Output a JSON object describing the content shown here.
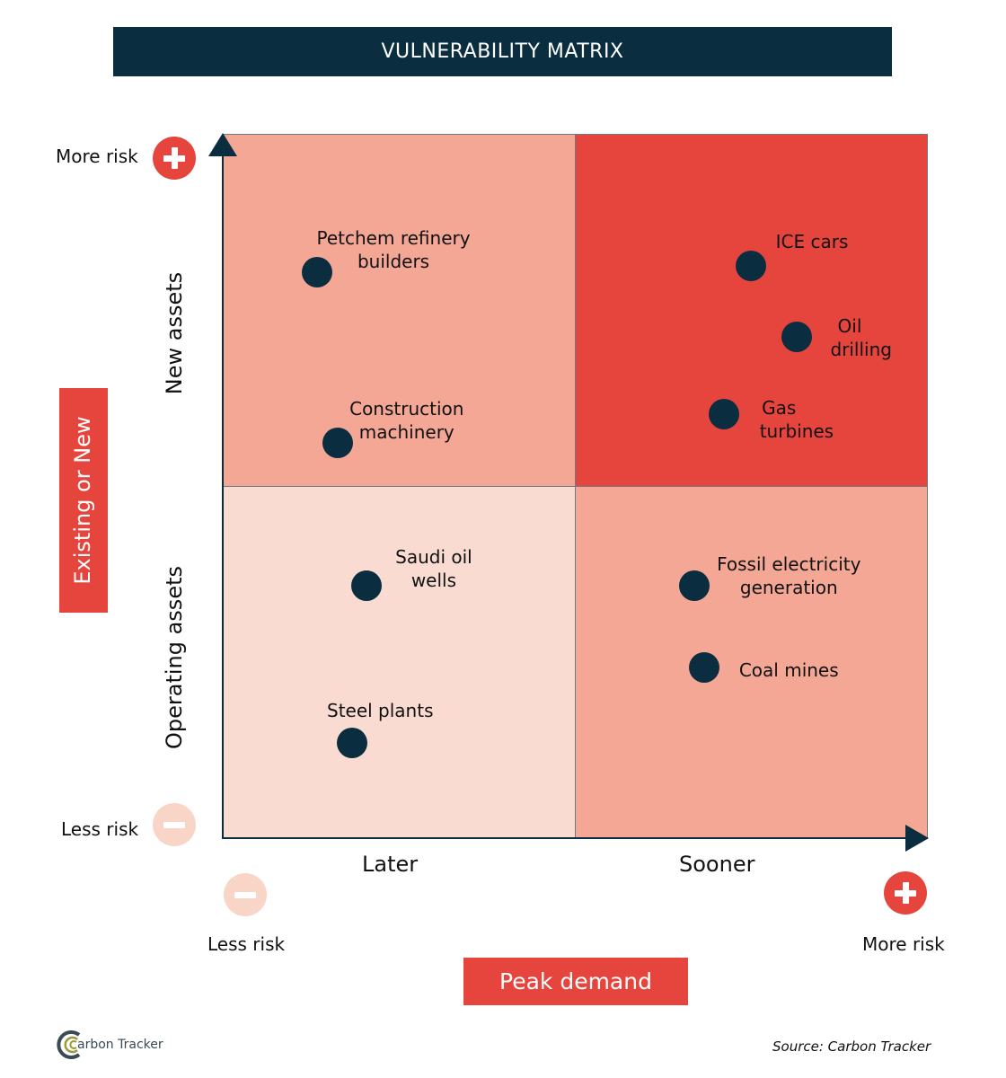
{
  "title": "VULNERABILITY MATRIX",
  "y_axis": {
    "title": "Existing or New",
    "top_label": "New assets",
    "bottom_label": "Operating assets",
    "more_risk": "More risk",
    "less_risk": "Less risk"
  },
  "x_axis": {
    "title": "Peak demand",
    "left_label": "Later",
    "right_label": "Sooner",
    "more_risk": "More risk",
    "less_risk": "Less risk"
  },
  "colors": {
    "dark": "#0a2d40",
    "high": "#e6453d",
    "mid": "#f3a794",
    "low": "#f9dbd1"
  },
  "chart_data": {
    "type": "scatter",
    "xlabel": "Peak demand",
    "ylabel": "Existing or New",
    "xlim": [
      0,
      10
    ],
    "ylim": [
      0,
      10
    ],
    "points": [
      {
        "label": "Petchem refinery builders",
        "x": 1.34,
        "y": 8.04
      },
      {
        "label": "Construction machinery",
        "x": 1.63,
        "y": 5.61
      },
      {
        "label": "Saudi oil wells",
        "x": 2.04,
        "y": 3.58
      },
      {
        "label": "Steel plants",
        "x": 1.84,
        "y": 1.35
      },
      {
        "label": "ICE cars",
        "x": 7.5,
        "y": 8.13
      },
      {
        "label": "Oil drilling",
        "x": 8.15,
        "y": 7.12
      },
      {
        "label": "Gas turbines",
        "x": 7.12,
        "y": 6.02
      },
      {
        "label": "Fossil electricity generation",
        "x": 6.7,
        "y": 3.58
      },
      {
        "label": "Coal mines",
        "x": 6.84,
        "y": 2.42
      }
    ]
  },
  "footer": {
    "logo": "Carbon Tracker Initiative",
    "source": "Source: Carbon Tracker"
  }
}
